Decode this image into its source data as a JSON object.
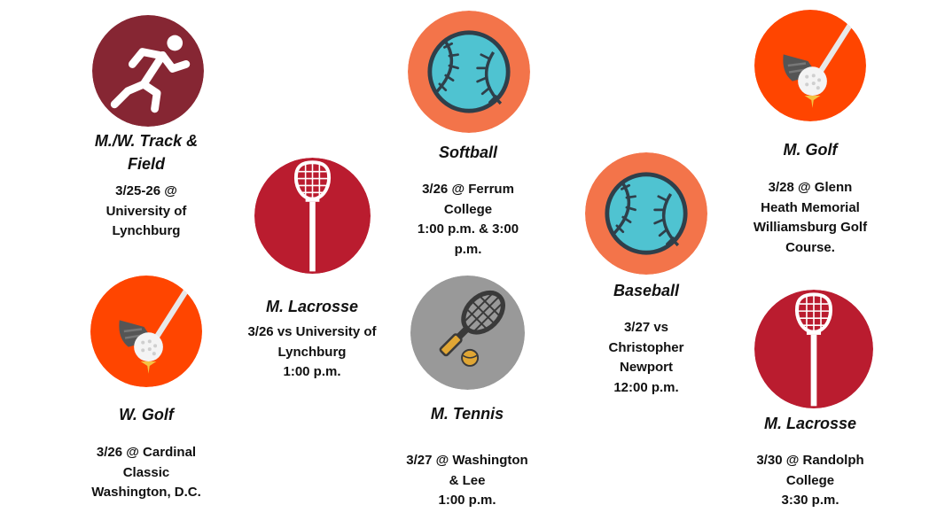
{
  "colors": {
    "maroon": "#862633",
    "crimson": "#BA1C2F",
    "orange_golf": "#FF4500",
    "orange_ball": "#F3744A",
    "ball_teal": "#4FC3D1",
    "gray_tennis": "#999999"
  },
  "events": [
    {
      "sport": "M./W. Track & Field",
      "icon": "runner-icon",
      "lines": [
        "3/25-26 @",
        "University of",
        "Lynchburg"
      ]
    },
    {
      "sport": "W. Golf",
      "icon": "golf-club-ball-icon",
      "lines": [
        "3/26 @ Cardinal",
        "Classic",
        "Washington, D.C."
      ]
    },
    {
      "sport": "M. Lacrosse",
      "icon": "lacrosse-stick-icon",
      "lines": [
        "3/26 vs University of",
        "Lynchburg",
        "1:00 p.m."
      ]
    },
    {
      "sport": "Softball",
      "icon": "softball-icon",
      "lines": [
        "3/26 @ Ferrum",
        "College",
        "1:00 p.m. & 3:00",
        "p.m."
      ]
    },
    {
      "sport": "M. Tennis",
      "icon": "tennis-racket-ball-icon",
      "lines": [
        "3/27 @ Washington",
        "& Lee",
        "1:00 p.m."
      ]
    },
    {
      "sport": "Baseball",
      "icon": "baseball-icon",
      "lines": [
        "3/27 vs",
        "Christopher",
        "Newport",
        "12:00 p.m."
      ]
    },
    {
      "sport": "M. Golf",
      "icon": "golf-club-ball-icon",
      "lines": [
        "3/28 @ Glenn",
        "Heath Memorial",
        "Williamsburg Golf",
        "Course."
      ]
    },
    {
      "sport": "M. Lacrosse",
      "icon": "lacrosse-stick-icon",
      "lines": [
        "3/30 @ Randolph",
        "College",
        "3:30 p.m."
      ]
    }
  ]
}
